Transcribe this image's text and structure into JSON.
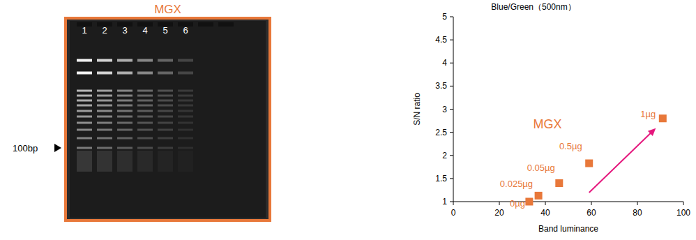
{
  "gel": {
    "title": "MGX",
    "lanes": [
      "1",
      "2",
      "3",
      "4",
      "5",
      "6"
    ],
    "marker_label": "100bp"
  },
  "chart_data": {
    "type": "scatter",
    "title": "Blue/Green（500nm）",
    "x_label": "Band luminance",
    "y_label": "S/N ratio",
    "xlim": [
      0,
      100
    ],
    "xticks": [
      0,
      20,
      40,
      60,
      80,
      100
    ],
    "ylim": [
      1,
      5
    ],
    "yticks": [
      1,
      1.5,
      2,
      2.5,
      3,
      3.5,
      4,
      4.5,
      5
    ],
    "grid": false,
    "marker": "square",
    "series": [
      {
        "name": "MGX",
        "color": "#e8783a",
        "x": [
          33,
          37,
          46,
          59,
          91
        ],
        "values": [
          1.0,
          1.13,
          1.4,
          1.83,
          2.8
        ],
        "labels": [
          "0µg",
          "0.025µg",
          "0.05µg",
          "0.5µg",
          "1µg"
        ]
      }
    ]
  }
}
